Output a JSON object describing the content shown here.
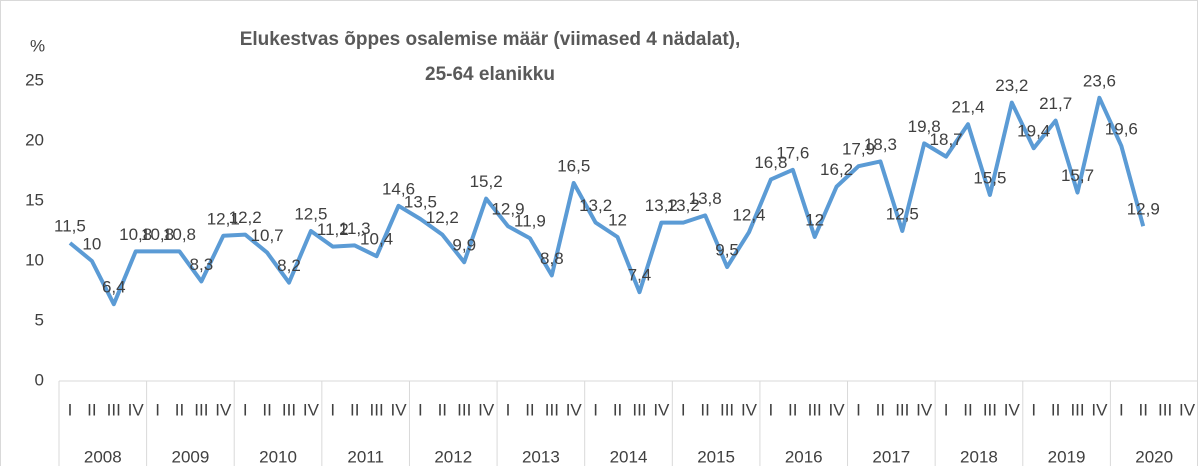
{
  "chart_data": {
    "type": "line",
    "title": [
      "Elukestvas õppes osalemise määr (viimased 4 nädalat),",
      "25-64 elanikku"
    ],
    "y_label": "%",
    "years": [
      "2008",
      "2009",
      "2010",
      "2011",
      "2012",
      "2013",
      "2014",
      "2015",
      "2016",
      "2017",
      "2018",
      "2019",
      "2020"
    ],
    "categories": [
      "I",
      "II",
      "III",
      "IV",
      "I",
      "II",
      "III",
      "IV",
      "I",
      "II",
      "III",
      "IV",
      "I",
      "II",
      "III",
      "IV",
      "I",
      "II",
      "III",
      "IV",
      "I",
      "II",
      "III",
      "IV",
      "I",
      "II",
      "III",
      "IV",
      "I",
      "II",
      "III",
      "IV",
      "I",
      "II",
      "III",
      "IV",
      "I",
      "II",
      "III",
      "IV",
      "I",
      "II",
      "III",
      "IV",
      "I",
      "II",
      "III",
      "IV",
      "I",
      "II",
      "III",
      "IV"
    ],
    "series": [
      {
        "name": "Elukestvas õppes osalemise määr",
        "color": "#5b9bd5",
        "values": [
          11.5,
          10,
          6.4,
          10.8,
          10.8,
          10.8,
          8.3,
          12.1,
          12.2,
          10.7,
          8.2,
          12.5,
          11.2,
          11.3,
          10.4,
          14.6,
          13.5,
          12.2,
          9.9,
          15.2,
          12.9,
          11.9,
          8.8,
          16.5,
          13.2,
          12,
          7.4,
          13.2,
          13.2,
          13.8,
          9.5,
          12.4,
          16.8,
          17.6,
          12,
          16.2,
          17.9,
          18.3,
          12.5,
          19.8,
          18.7,
          21.4,
          15.5,
          23.2,
          19.4,
          21.7,
          15.7,
          23.6,
          19.6,
          12.9,
          null,
          null
        ],
        "value_labels": [
          "11,5",
          "10",
          "6,4",
          "10,8",
          "10,8",
          "10,8",
          "8,3",
          "12,1",
          "12,2",
          "10,7",
          "8,2",
          "12,5",
          "11,2",
          "11,3",
          "10,4",
          "14,6",
          "13,5",
          "12,2",
          "9,9",
          "15,2",
          "12,9",
          "11,9",
          "8,8",
          "16,5",
          "13,2",
          "12",
          "7,4",
          "13,2",
          "13,2",
          "13,8",
          "9,5",
          "12,4",
          "16,8",
          "17,6",
          "12",
          "16,2",
          "17,9",
          "18,3",
          "12,5",
          "19,8",
          "18,7",
          "21,4",
          "15,5",
          "23,2",
          "19,4",
          "21,7",
          "15,7",
          "23,6",
          "19,6",
          "12,9",
          null,
          null
        ]
      }
    ],
    "ylim": [
      0,
      30
    ],
    "yticks": [
      0,
      5,
      10,
      15,
      20,
      25
    ]
  }
}
